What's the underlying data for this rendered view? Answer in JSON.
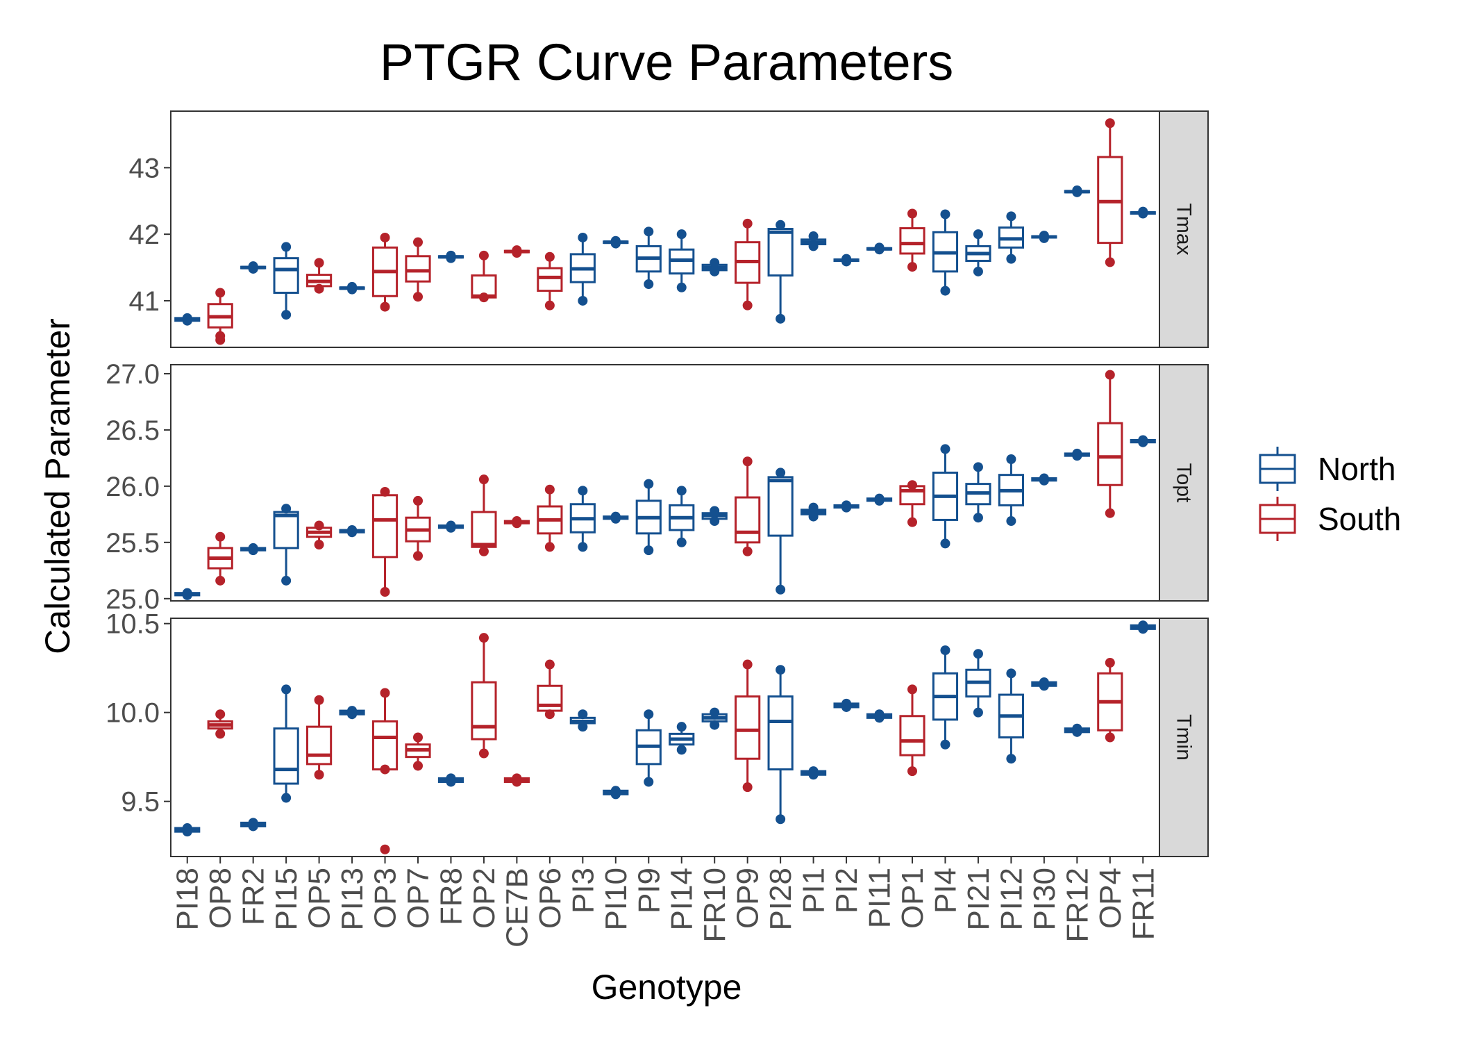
{
  "chart_data": {
    "type": "boxplot",
    "title": "PTGR Curve Parameters",
    "xlabel": "Genotype",
    "ylabel": "Calculated Parameter",
    "legend": {
      "position": "right",
      "entries": [
        {
          "name": "North",
          "color": "#14508f"
        },
        {
          "name": "South",
          "color": "#b5222a"
        }
      ]
    },
    "categories": [
      "PI18",
      "OP8",
      "FR2",
      "PI15",
      "OP5",
      "PI13",
      "OP3",
      "OP7",
      "FR8",
      "OP2",
      "CE7B",
      "OP6",
      "PI3",
      "PI10",
      "PI9",
      "PI14",
      "FR10",
      "OP9",
      "PI28",
      "PI1",
      "PI2",
      "PI11",
      "OP1",
      "PI4",
      "PI21",
      "PI12",
      "PI30",
      "FR12",
      "OP4",
      "FR11"
    ],
    "groups": [
      "North",
      "South",
      "North",
      "North",
      "South",
      "North",
      "South",
      "South",
      "North",
      "South",
      "South",
      "South",
      "North",
      "North",
      "North",
      "North",
      "North",
      "South",
      "North",
      "North",
      "North",
      "North",
      "South",
      "North",
      "North",
      "North",
      "North",
      "North",
      "South",
      "North"
    ],
    "panels": [
      {
        "strip": "Tmax",
        "ylim": [
          40.3,
          43.85
        ],
        "yticks": [
          41,
          42,
          43
        ],
        "ytick_labels": [
          "41",
          "42",
          "43"
        ],
        "boxes": [
          {
            "lower": 40.7,
            "q1": 40.7,
            "median": 40.72,
            "q3": 40.74,
            "upper": 40.74,
            "outliers": []
          },
          {
            "lower": 40.47,
            "q1": 40.6,
            "median": 40.76,
            "q3": 40.95,
            "upper": 41.12,
            "outliers": [
              40.41
            ]
          },
          {
            "lower": 41.48,
            "q1": 41.49,
            "median": 41.5,
            "q3": 41.51,
            "upper": 41.52,
            "outliers": []
          },
          {
            "lower": 40.79,
            "q1": 41.12,
            "median": 41.47,
            "q3": 41.64,
            "upper": 41.81,
            "outliers": []
          },
          {
            "lower": 41.18,
            "q1": 41.22,
            "median": 41.29,
            "q3": 41.39,
            "upper": 41.57,
            "outliers": []
          },
          {
            "lower": 41.17,
            "q1": 41.18,
            "median": 41.19,
            "q3": 41.2,
            "upper": 41.21,
            "outliers": []
          },
          {
            "lower": 40.91,
            "q1": 41.07,
            "median": 41.44,
            "q3": 41.8,
            "upper": 41.95,
            "outliers": []
          },
          {
            "lower": 41.06,
            "q1": 41.29,
            "median": 41.45,
            "q3": 41.67,
            "upper": 41.88,
            "outliers": []
          },
          {
            "lower": 41.64,
            "q1": 41.65,
            "median": 41.66,
            "q3": 41.67,
            "upper": 41.68,
            "outliers": []
          },
          {
            "lower": 41.05,
            "q1": 41.05,
            "median": 41.07,
            "q3": 41.38,
            "upper": 41.68,
            "outliers": []
          },
          {
            "lower": 41.72,
            "q1": 41.73,
            "median": 41.74,
            "q3": 41.75,
            "upper": 41.76,
            "outliers": []
          },
          {
            "lower": 40.93,
            "q1": 41.15,
            "median": 41.35,
            "q3": 41.49,
            "upper": 41.66,
            "outliers": []
          },
          {
            "lower": 41.0,
            "q1": 41.28,
            "median": 41.48,
            "q3": 41.7,
            "upper": 41.95,
            "outliers": []
          },
          {
            "lower": 41.86,
            "q1": 41.87,
            "median": 41.88,
            "q3": 41.89,
            "upper": 41.9,
            "outliers": []
          },
          {
            "lower": 41.25,
            "q1": 41.44,
            "median": 41.64,
            "q3": 41.82,
            "upper": 42.04,
            "outliers": []
          },
          {
            "lower": 41.2,
            "q1": 41.41,
            "median": 41.61,
            "q3": 41.77,
            "upper": 42.0,
            "outliers": []
          },
          {
            "lower": 41.44,
            "q1": 41.46,
            "median": 41.5,
            "q3": 41.54,
            "upper": 41.57,
            "outliers": []
          },
          {
            "lower": 40.93,
            "q1": 41.27,
            "median": 41.59,
            "q3": 41.88,
            "upper": 42.16,
            "outliers": []
          },
          {
            "lower": 40.73,
            "q1": 41.38,
            "median": 42.03,
            "q3": 42.08,
            "upper": 42.14,
            "outliers": []
          },
          {
            "lower": 41.82,
            "q1": 41.85,
            "median": 41.88,
            "q3": 41.92,
            "upper": 41.97,
            "outliers": []
          },
          {
            "lower": 41.59,
            "q1": 41.6,
            "median": 41.61,
            "q3": 41.62,
            "upper": 41.63,
            "outliers": []
          },
          {
            "lower": 41.77,
            "q1": 41.77,
            "median": 41.78,
            "q3": 41.79,
            "upper": 41.8,
            "outliers": []
          },
          {
            "lower": 41.51,
            "q1": 41.71,
            "median": 41.86,
            "q3": 42.09,
            "upper": 42.31,
            "outliers": []
          },
          {
            "lower": 41.15,
            "q1": 41.44,
            "median": 41.72,
            "q3": 42.03,
            "upper": 42.3,
            "outliers": []
          },
          {
            "lower": 41.44,
            "q1": 41.6,
            "median": 41.71,
            "q3": 41.82,
            "upper": 42.0,
            "outliers": []
          },
          {
            "lower": 41.63,
            "q1": 41.8,
            "median": 41.93,
            "q3": 42.1,
            "upper": 42.27,
            "outliers": []
          },
          {
            "lower": 41.94,
            "q1": 41.95,
            "median": 41.96,
            "q3": 41.97,
            "upper": 41.98,
            "outliers": []
          },
          {
            "lower": 42.63,
            "q1": 42.63,
            "median": 42.64,
            "q3": 42.65,
            "upper": 42.66,
            "outliers": []
          },
          {
            "lower": 41.58,
            "q1": 41.87,
            "median": 42.49,
            "q3": 43.16,
            "upper": 43.67,
            "outliers": []
          },
          {
            "lower": 42.31,
            "q1": 42.31,
            "median": 42.32,
            "q3": 42.33,
            "upper": 42.34,
            "outliers": []
          }
        ]
      },
      {
        "strip": "Topt",
        "ylim": [
          24.98,
          27.08
        ],
        "yticks": [
          25.0,
          25.5,
          26.0,
          26.5,
          27.0
        ],
        "ytick_labels": [
          "25.0",
          "25.5",
          "26.0",
          "26.5",
          "27.0"
        ],
        "boxes": [
          {
            "lower": 25.03,
            "q1": 25.03,
            "median": 25.04,
            "q3": 25.05,
            "upper": 25.05,
            "outliers": []
          },
          {
            "lower": 25.16,
            "q1": 25.27,
            "median": 25.36,
            "q3": 25.45,
            "upper": 25.55,
            "outliers": []
          },
          {
            "lower": 25.43,
            "q1": 25.43,
            "median": 25.44,
            "q3": 25.45,
            "upper": 25.45,
            "outliers": []
          },
          {
            "lower": 25.16,
            "q1": 25.45,
            "median": 25.74,
            "q3": 25.77,
            "upper": 25.8,
            "outliers": []
          },
          {
            "lower": 25.48,
            "q1": 25.55,
            "median": 25.59,
            "q3": 25.63,
            "upper": 25.65,
            "outliers": []
          },
          {
            "lower": 25.59,
            "q1": 25.59,
            "median": 25.6,
            "q3": 25.61,
            "upper": 25.61,
            "outliers": []
          },
          {
            "lower": 25.06,
            "q1": 25.37,
            "median": 25.7,
            "q3": 25.92,
            "upper": 25.95,
            "outliers": []
          },
          {
            "lower": 25.38,
            "q1": 25.51,
            "median": 25.61,
            "q3": 25.72,
            "upper": 25.87,
            "outliers": []
          },
          {
            "lower": 25.63,
            "q1": 25.63,
            "median": 25.64,
            "q3": 25.65,
            "upper": 25.65,
            "outliers": []
          },
          {
            "lower": 25.42,
            "q1": 25.46,
            "median": 25.48,
            "q3": 25.77,
            "upper": 26.06,
            "outliers": []
          },
          {
            "lower": 25.67,
            "q1": 25.67,
            "median": 25.68,
            "q3": 25.69,
            "upper": 25.69,
            "outliers": []
          },
          {
            "lower": 25.46,
            "q1": 25.58,
            "median": 25.7,
            "q3": 25.82,
            "upper": 25.97,
            "outliers": []
          },
          {
            "lower": 25.46,
            "q1": 25.59,
            "median": 25.71,
            "q3": 25.84,
            "upper": 25.96,
            "outliers": []
          },
          {
            "lower": 25.71,
            "q1": 25.71,
            "median": 25.72,
            "q3": 25.73,
            "upper": 25.73,
            "outliers": []
          },
          {
            "lower": 25.43,
            "q1": 25.58,
            "median": 25.72,
            "q3": 25.87,
            "upper": 26.02,
            "outliers": []
          },
          {
            "lower": 25.5,
            "q1": 25.61,
            "median": 25.72,
            "q3": 25.83,
            "upper": 25.96,
            "outliers": []
          },
          {
            "lower": 25.69,
            "q1": 25.71,
            "median": 25.74,
            "q3": 25.76,
            "upper": 25.78,
            "outliers": []
          },
          {
            "lower": 25.42,
            "q1": 25.5,
            "median": 25.59,
            "q3": 25.9,
            "upper": 26.22,
            "outliers": []
          },
          {
            "lower": 25.08,
            "q1": 25.56,
            "median": 26.05,
            "q3": 26.08,
            "upper": 26.12,
            "outliers": []
          },
          {
            "lower": 25.73,
            "q1": 25.75,
            "median": 25.77,
            "q3": 25.79,
            "upper": 25.81,
            "outliers": []
          },
          {
            "lower": 25.81,
            "q1": 25.81,
            "median": 25.82,
            "q3": 25.83,
            "upper": 25.83,
            "outliers": []
          },
          {
            "lower": 25.87,
            "q1": 25.87,
            "median": 25.88,
            "q3": 25.89,
            "upper": 25.89,
            "outliers": []
          },
          {
            "lower": 25.68,
            "q1": 25.84,
            "median": 25.96,
            "q3": 26.0,
            "upper": 26.01,
            "outliers": []
          },
          {
            "lower": 25.49,
            "q1": 25.7,
            "median": 25.91,
            "q3": 26.12,
            "upper": 26.33,
            "outliers": []
          },
          {
            "lower": 25.72,
            "q1": 25.84,
            "median": 25.94,
            "q3": 26.02,
            "upper": 26.17,
            "outliers": []
          },
          {
            "lower": 25.69,
            "q1": 25.83,
            "median": 25.96,
            "q3": 26.1,
            "upper": 26.24,
            "outliers": []
          },
          {
            "lower": 26.05,
            "q1": 26.05,
            "median": 26.06,
            "q3": 26.07,
            "upper": 26.07,
            "outliers": []
          },
          {
            "lower": 26.27,
            "q1": 26.27,
            "median": 26.28,
            "q3": 26.29,
            "upper": 26.29,
            "outliers": []
          },
          {
            "lower": 25.76,
            "q1": 26.01,
            "median": 26.26,
            "q3": 26.56,
            "upper": 26.99,
            "outliers": []
          },
          {
            "lower": 26.39,
            "q1": 26.39,
            "median": 26.4,
            "q3": 26.41,
            "upper": 26.41,
            "outliers": []
          }
        ]
      },
      {
        "strip": "Tmin",
        "ylim": [
          9.19,
          10.53
        ],
        "yticks": [
          9.5,
          10.0,
          10.5
        ],
        "ytick_labels": [
          "9.5",
          "10.0",
          "10.5"
        ],
        "boxes": [
          {
            "lower": 9.33,
            "q1": 9.33,
            "median": 9.34,
            "q3": 9.35,
            "upper": 9.35,
            "outliers": []
          },
          {
            "lower": 9.88,
            "q1": 9.91,
            "median": 9.93,
            "q3": 9.95,
            "upper": 9.99,
            "outliers": []
          },
          {
            "lower": 9.36,
            "q1": 9.36,
            "median": 9.37,
            "q3": 9.38,
            "upper": 9.38,
            "outliers": []
          },
          {
            "lower": 9.52,
            "q1": 9.6,
            "median": 9.68,
            "q3": 9.91,
            "upper": 10.13,
            "outliers": []
          },
          {
            "lower": 9.65,
            "q1": 9.71,
            "median": 9.76,
            "q3": 9.92,
            "upper": 10.07,
            "outliers": []
          },
          {
            "lower": 9.99,
            "q1": 9.99,
            "median": 10.0,
            "q3": 10.01,
            "upper": 10.01,
            "outliers": []
          },
          {
            "lower": 9.68,
            "q1": 9.68,
            "median": 9.86,
            "q3": 9.95,
            "upper": 10.11,
            "outliers": [
              9.23
            ]
          },
          {
            "lower": 9.7,
            "q1": 9.75,
            "median": 9.79,
            "q3": 9.82,
            "upper": 9.86,
            "outliers": []
          },
          {
            "lower": 9.61,
            "q1": 9.61,
            "median": 9.62,
            "q3": 9.63,
            "upper": 9.63,
            "outliers": []
          },
          {
            "lower": 9.77,
            "q1": 9.85,
            "median": 9.92,
            "q3": 10.17,
            "upper": 10.42,
            "outliers": []
          },
          {
            "lower": 9.61,
            "q1": 9.61,
            "median": 9.62,
            "q3": 9.63,
            "upper": 9.63,
            "outliers": []
          },
          {
            "lower": 9.99,
            "q1": 10.01,
            "median": 10.04,
            "q3": 10.15,
            "upper": 10.27,
            "outliers": []
          },
          {
            "lower": 9.92,
            "q1": 9.94,
            "median": 9.95,
            "q3": 9.97,
            "upper": 9.99,
            "outliers": []
          },
          {
            "lower": 9.54,
            "q1": 9.54,
            "median": 9.55,
            "q3": 9.56,
            "upper": 9.56,
            "outliers": []
          },
          {
            "lower": 9.61,
            "q1": 9.71,
            "median": 9.81,
            "q3": 9.9,
            "upper": 9.99,
            "outliers": []
          },
          {
            "lower": 9.79,
            "q1": 9.82,
            "median": 9.85,
            "q3": 9.88,
            "upper": 9.92,
            "outliers": []
          },
          {
            "lower": 9.93,
            "q1": 9.95,
            "median": 9.97,
            "q3": 9.99,
            "upper": 10.0,
            "outliers": []
          },
          {
            "lower": 9.58,
            "q1": 9.74,
            "median": 9.9,
            "q3": 10.09,
            "upper": 10.27,
            "outliers": []
          },
          {
            "lower": 9.4,
            "q1": 9.68,
            "median": 9.95,
            "q3": 10.09,
            "upper": 10.24,
            "outliers": []
          },
          {
            "lower": 9.65,
            "q1": 9.65,
            "median": 9.66,
            "q3": 9.67,
            "upper": 9.67,
            "outliers": []
          },
          {
            "lower": 10.03,
            "q1": 10.03,
            "median": 10.04,
            "q3": 10.05,
            "upper": 10.05,
            "outliers": []
          },
          {
            "lower": 9.97,
            "q1": 9.97,
            "median": 9.98,
            "q3": 9.99,
            "upper": 9.99,
            "outliers": []
          },
          {
            "lower": 9.67,
            "q1": 9.76,
            "median": 9.84,
            "q3": 9.98,
            "upper": 10.13,
            "outliers": []
          },
          {
            "lower": 9.82,
            "q1": 9.96,
            "median": 10.09,
            "q3": 10.22,
            "upper": 10.35,
            "outliers": []
          },
          {
            "lower": 10.0,
            "q1": 10.09,
            "median": 10.17,
            "q3": 10.24,
            "upper": 10.33,
            "outliers": []
          },
          {
            "lower": 9.74,
            "q1": 9.86,
            "median": 9.98,
            "q3": 10.1,
            "upper": 10.22,
            "outliers": []
          },
          {
            "lower": 10.15,
            "q1": 10.15,
            "median": 10.16,
            "q3": 10.17,
            "upper": 10.17,
            "outliers": []
          },
          {
            "lower": 9.89,
            "q1": 9.89,
            "median": 9.9,
            "q3": 9.91,
            "upper": 9.91,
            "outliers": []
          },
          {
            "lower": 9.86,
            "q1": 9.9,
            "median": 10.06,
            "q3": 10.22,
            "upper": 10.28,
            "outliers": []
          },
          {
            "lower": 10.47,
            "q1": 10.47,
            "median": 10.48,
            "q3": 10.49,
            "upper": 10.49,
            "outliers": []
          }
        ]
      }
    ]
  }
}
